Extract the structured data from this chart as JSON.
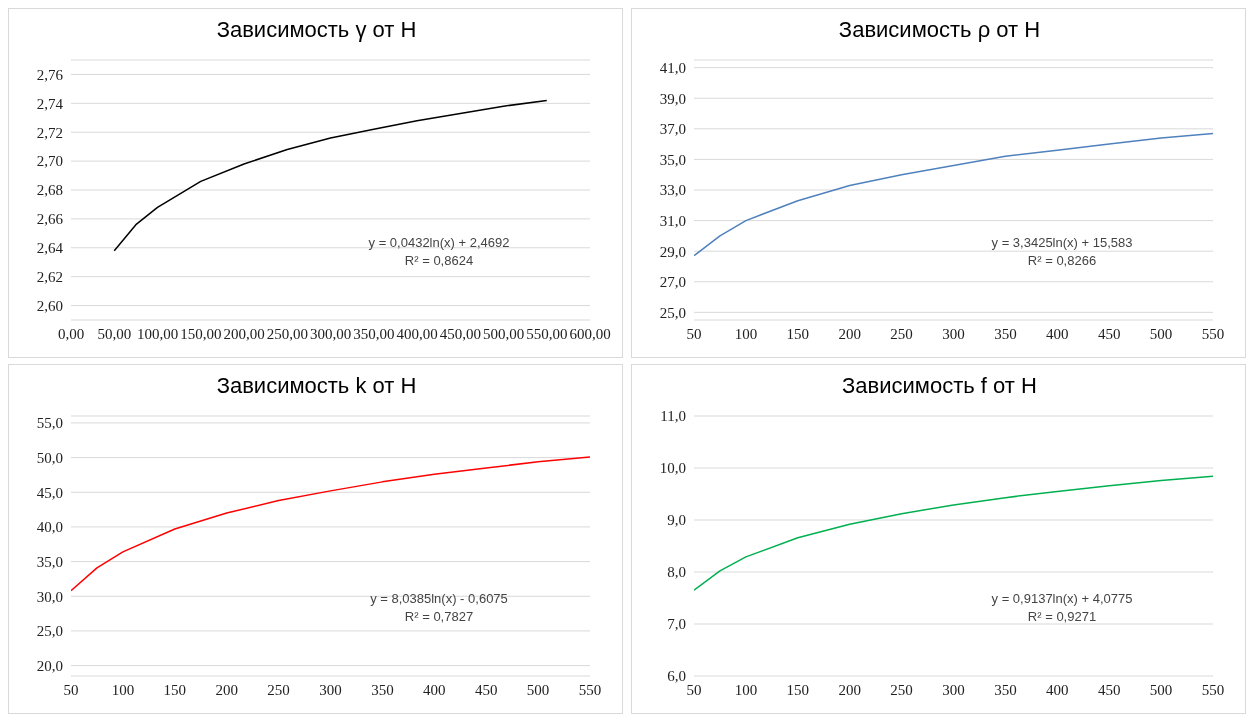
{
  "chart_data": [
    {
      "type": "line",
      "title": "Зависимость γ от H",
      "x": [
        50,
        75,
        100,
        150,
        200,
        250,
        300,
        350,
        400,
        450,
        500,
        550
      ],
      "series": [
        {
          "color": "#000000",
          "values": [
            2.638,
            2.656,
            2.668,
            2.686,
            2.698,
            2.708,
            2.716,
            2.722,
            2.728,
            2.733,
            2.738,
            2.742
          ]
        }
      ],
      "xlim": [
        0,
        600
      ],
      "xticks": [
        {
          "value": 0,
          "label": "0,00"
        },
        {
          "value": 50,
          "label": "50,00"
        },
        {
          "value": 100,
          "label": "100,00"
        },
        {
          "value": 150,
          "label": "150,00"
        },
        {
          "value": 200,
          "label": "200,00"
        },
        {
          "value": 250,
          "label": "250,00"
        },
        {
          "value": 300,
          "label": "300,00"
        },
        {
          "value": 350,
          "label": "350,00"
        },
        {
          "value": 400,
          "label": "400,00"
        },
        {
          "value": 450,
          "label": "450,00"
        },
        {
          "value": 500,
          "label": "500,00"
        },
        {
          "value": 550,
          "label": "550,00"
        },
        {
          "value": 600,
          "label": "600,00"
        }
      ],
      "ylim": [
        2.59,
        2.77
      ],
      "yticks": [
        {
          "value": 2.6,
          "label": "2,60"
        },
        {
          "value": 2.62,
          "label": "2,62"
        },
        {
          "value": 2.64,
          "label": "2,64"
        },
        {
          "value": 2.66,
          "label": "2,66"
        },
        {
          "value": 2.68,
          "label": "2,68"
        },
        {
          "value": 2.7,
          "label": "2,70"
        },
        {
          "value": 2.72,
          "label": "2,72"
        },
        {
          "value": 2.74,
          "label": "2,74"
        },
        {
          "value": 2.76,
          "label": "2,76"
        }
      ],
      "grid": "y",
      "legend": false,
      "marker": "none",
      "line_style": "solid",
      "annotations": [
        "y = 0,0432ln(x) + 2,4692",
        "R² = 0,8624"
      ]
    },
    {
      "type": "line",
      "title": "Зависимость ρ от H",
      "x": [
        50,
        75,
        100,
        150,
        200,
        250,
        300,
        350,
        400,
        450,
        500,
        550
      ],
      "series": [
        {
          "color": "#4f81bd",
          "values": [
            28.7,
            30.0,
            31.0,
            32.3,
            33.3,
            34.0,
            34.6,
            35.2,
            35.6,
            36.0,
            36.4,
            36.7
          ]
        }
      ],
      "xlim": [
        50,
        550
      ],
      "xticks": [
        50,
        100,
        150,
        200,
        250,
        300,
        350,
        400,
        450,
        500,
        550
      ],
      "ylim": [
        24.5,
        41.5
      ],
      "yticks": [
        {
          "value": 25,
          "label": "25,0"
        },
        {
          "value": 27,
          "label": "27,0"
        },
        {
          "value": 29,
          "label": "29,0"
        },
        {
          "value": 31,
          "label": "31,0"
        },
        {
          "value": 33,
          "label": "33,0"
        },
        {
          "value": 35,
          "label": "35,0"
        },
        {
          "value": 37,
          "label": "37,0"
        },
        {
          "value": 39,
          "label": "39,0"
        },
        {
          "value": 41,
          "label": "41,0"
        }
      ],
      "grid": "y",
      "legend": false,
      "marker": "none",
      "line_style": "solid",
      "annotations": [
        "y = 3,3425ln(x) + 15,583",
        "R² = 0,8266"
      ]
    },
    {
      "type": "line",
      "title": "Зависимость k от H",
      "x": [
        50,
        75,
        100,
        150,
        200,
        250,
        300,
        350,
        400,
        450,
        500,
        550
      ],
      "series": [
        {
          "color": "#ff0000",
          "values": [
            30.8,
            34.1,
            36.4,
            39.7,
            42.0,
            43.8,
            45.2,
            46.5,
            47.6,
            48.5,
            49.4,
            50.1
          ]
        }
      ],
      "xlim": [
        50,
        550
      ],
      "xticks": [
        50,
        100,
        150,
        200,
        250,
        300,
        350,
        400,
        450,
        500,
        550
      ],
      "ylim": [
        18.5,
        56
      ],
      "yticks": [
        {
          "value": 20,
          "label": "20,0"
        },
        {
          "value": 25,
          "label": "25,0"
        },
        {
          "value": 30,
          "label": "30,0"
        },
        {
          "value": 35,
          "label": "35,0"
        },
        {
          "value": 40,
          "label": "40,0"
        },
        {
          "value": 45,
          "label": "45,0"
        },
        {
          "value": 50,
          "label": "50,0"
        },
        {
          "value": 55,
          "label": "55,0"
        }
      ],
      "grid": "y",
      "legend": false,
      "marker": "none",
      "line_style": "solid",
      "annotations": [
        "y = 8,0385ln(x) - 0,6075",
        "R² = 0,7827"
      ]
    },
    {
      "type": "line",
      "title": "Зависимость f от H",
      "x": [
        50,
        75,
        100,
        150,
        200,
        250,
        300,
        350,
        400,
        450,
        500,
        550
      ],
      "series": [
        {
          "color": "#00b050",
          "values": [
            7.65,
            8.02,
            8.29,
            8.66,
            8.92,
            9.12,
            9.29,
            9.43,
            9.55,
            9.66,
            9.76,
            9.84
          ]
        }
      ],
      "xlim": [
        50,
        550
      ],
      "xticks": [
        50,
        100,
        150,
        200,
        250,
        300,
        350,
        400,
        450,
        500,
        550
      ],
      "ylim": [
        6,
        11
      ],
      "yticks": [
        {
          "value": 6,
          "label": "6,0"
        },
        {
          "value": 7,
          "label": "7,0"
        },
        {
          "value": 8,
          "label": "8,0"
        },
        {
          "value": 9,
          "label": "9,0"
        },
        {
          "value": 10,
          "label": "10,0"
        },
        {
          "value": 11,
          "label": "11,0"
        }
      ],
      "grid": "y",
      "legend": false,
      "marker": "none",
      "line_style": "solid",
      "annotations": [
        "y = 0,9137ln(x) + 4,0775",
        "R² = 0,9271"
      ]
    }
  ]
}
